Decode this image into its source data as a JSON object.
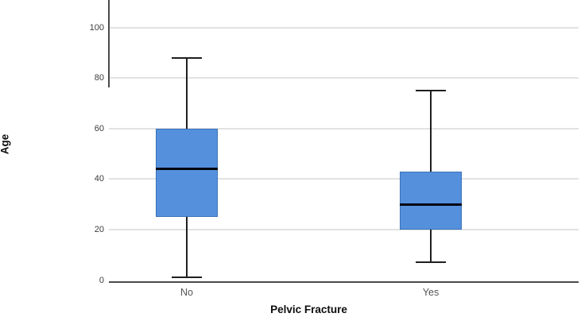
{
  "chart_data": {
    "type": "boxplot",
    "title": "",
    "xlabel": "Pelvic Fracture",
    "ylabel": "Age",
    "categories": [
      "No",
      "Yes"
    ],
    "series": [
      {
        "category": "No",
        "min": 1,
        "q1": 25,
        "median": 44,
        "q3": 60,
        "max": 88
      },
      {
        "category": "Yes",
        "min": 7,
        "q1": 20,
        "median": 30,
        "q3": 43,
        "max": 75
      }
    ],
    "yticks": [
      0,
      20,
      40,
      60,
      80,
      100
    ],
    "ylim": [
      0,
      111
    ],
    "grid": "horizontal-light-gray",
    "legend": "none",
    "colors": {
      "box_fill": "#5590DD",
      "box_border": "#3b72ba",
      "median": "#05050f",
      "whisker": "#1f1f1f",
      "gridline": "#e2e2e2",
      "axis_line": "#4a4a4a",
      "tick_label": "#3d3d3d",
      "category_label": "#565656",
      "title_text": "#0d0d0d",
      "background": "#ffffff"
    }
  }
}
